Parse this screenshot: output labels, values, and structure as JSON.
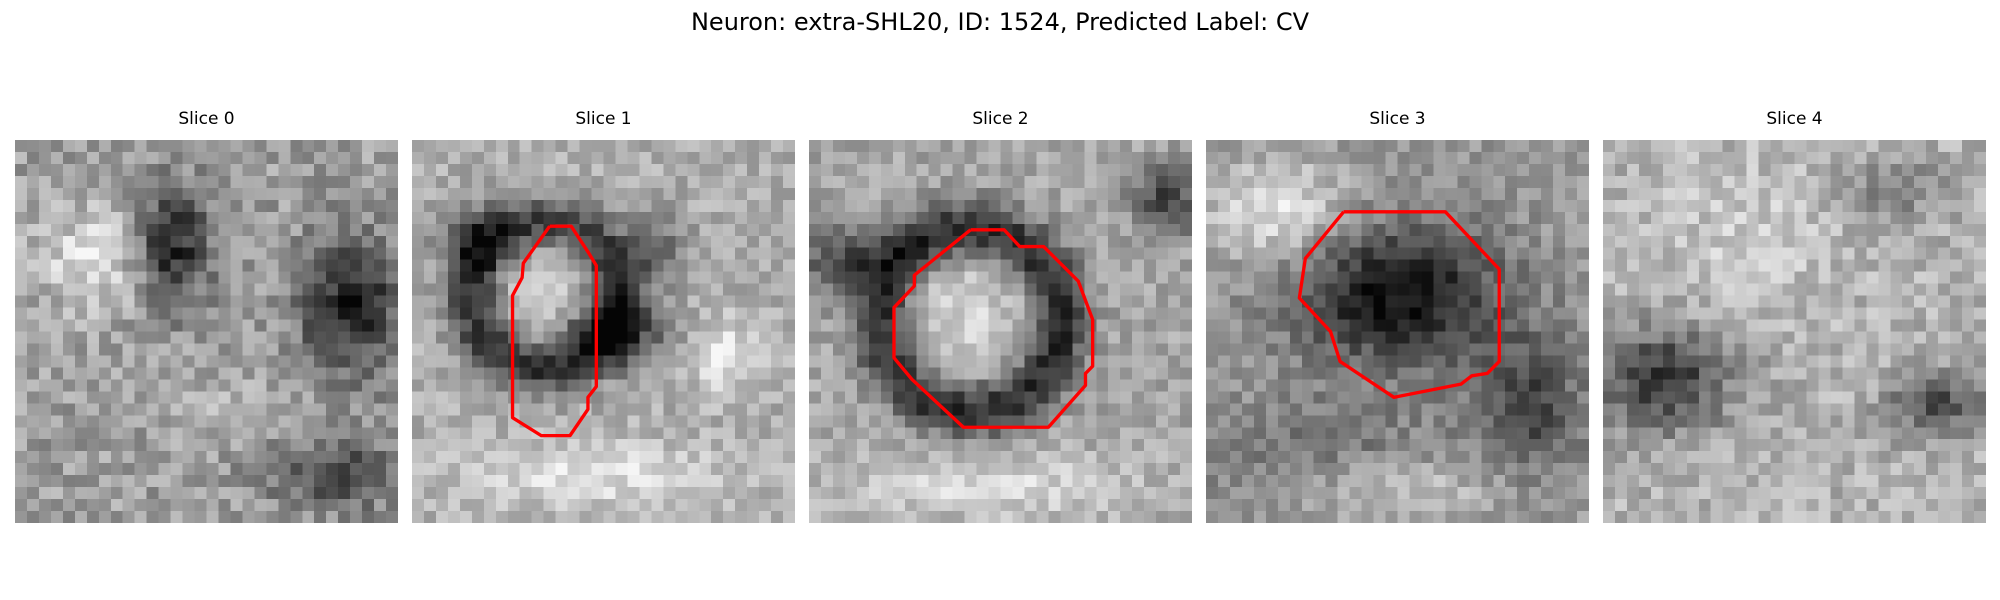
{
  "figure": {
    "title": "Neuron: extra-SHL20, ID: 1524, Predicted Label: CV"
  },
  "slices": [
    {
      "title": "Slice 0",
      "has_contour": false,
      "texture": "mottled grey with dark blob center-right"
    },
    {
      "title": "Slice 1",
      "has_contour": true,
      "texture": "bright round body outlined, dark ring"
    },
    {
      "title": "Slice 2",
      "has_contour": true,
      "texture": "bright round body outlined, dark ring"
    },
    {
      "title": "Slice 3",
      "has_contour": true,
      "texture": "dark body outlined, bright surroundings"
    },
    {
      "title": "Slice 4",
      "has_contour": false,
      "texture": "light speckled grey with dark patch lower-left"
    }
  ],
  "contour_color": "#ff0000",
  "colormap": "grayscale"
}
